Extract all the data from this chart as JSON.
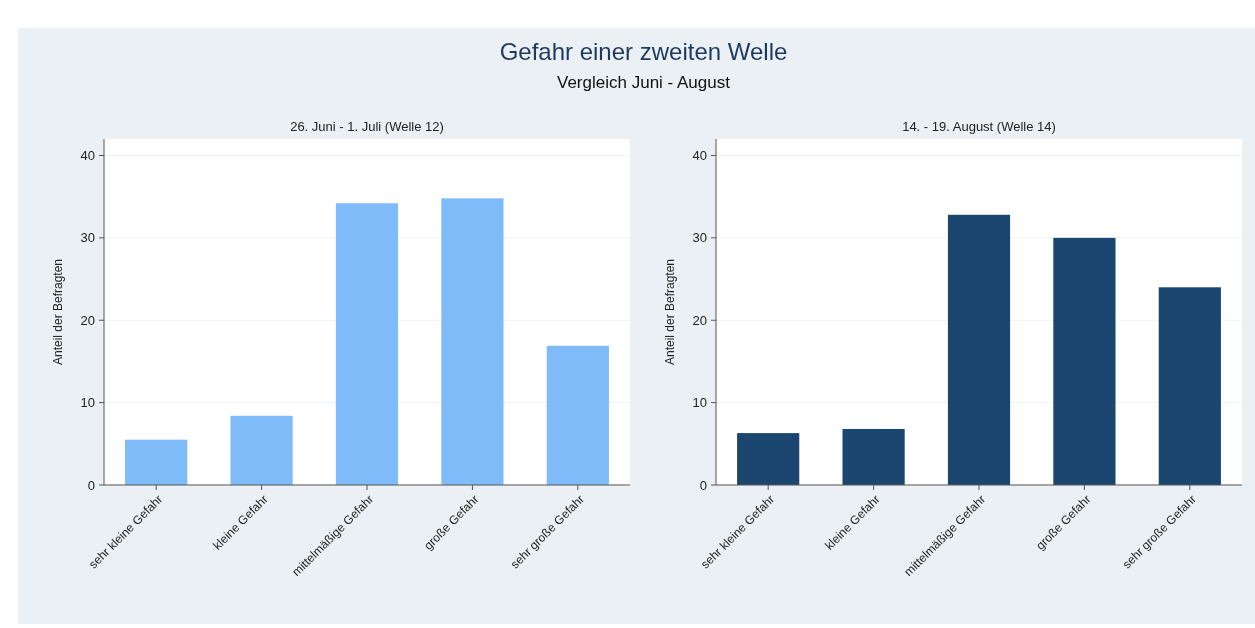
{
  "chart_data": [
    {
      "type": "bar",
      "title": "Gefahr einer zweiten Welle",
      "subtitle": "Vergleich Juni - August",
      "annotations": [
        "26. Juni - 1. Juli (Welle 12)"
      ],
      "ylabel": "Anteil der Befragten",
      "categories": [
        "sehr kleine Gefahr",
        "kleine Gefahr",
        "mittelmäßige Gefahr",
        "große Gefahr",
        "sehr große Gefahr"
      ],
      "values": [
        5.5,
        8.4,
        34.2,
        34.8,
        16.9
      ],
      "color": "#7fbbf9",
      "ylim": [
        0,
        42
      ],
      "yticks": [
        0,
        10,
        20,
        30,
        40
      ],
      "grid": "y"
    },
    {
      "type": "bar",
      "annotations": [
        "14. - 19. August (Welle 14)"
      ],
      "ylabel": "Anteil der Befragten",
      "categories": [
        "sehr kleine Gefahr",
        "kleine Gefahr",
        "mittelmäßige Gefahr",
        "große Gefahr",
        "sehr große Gefahr"
      ],
      "values": [
        6.3,
        6.8,
        32.8,
        30,
        24
      ],
      "color": "#1b466f",
      "ylim": [
        0,
        42
      ],
      "yticks": [
        0,
        10,
        20,
        30,
        40
      ],
      "grid": "y"
    }
  ]
}
